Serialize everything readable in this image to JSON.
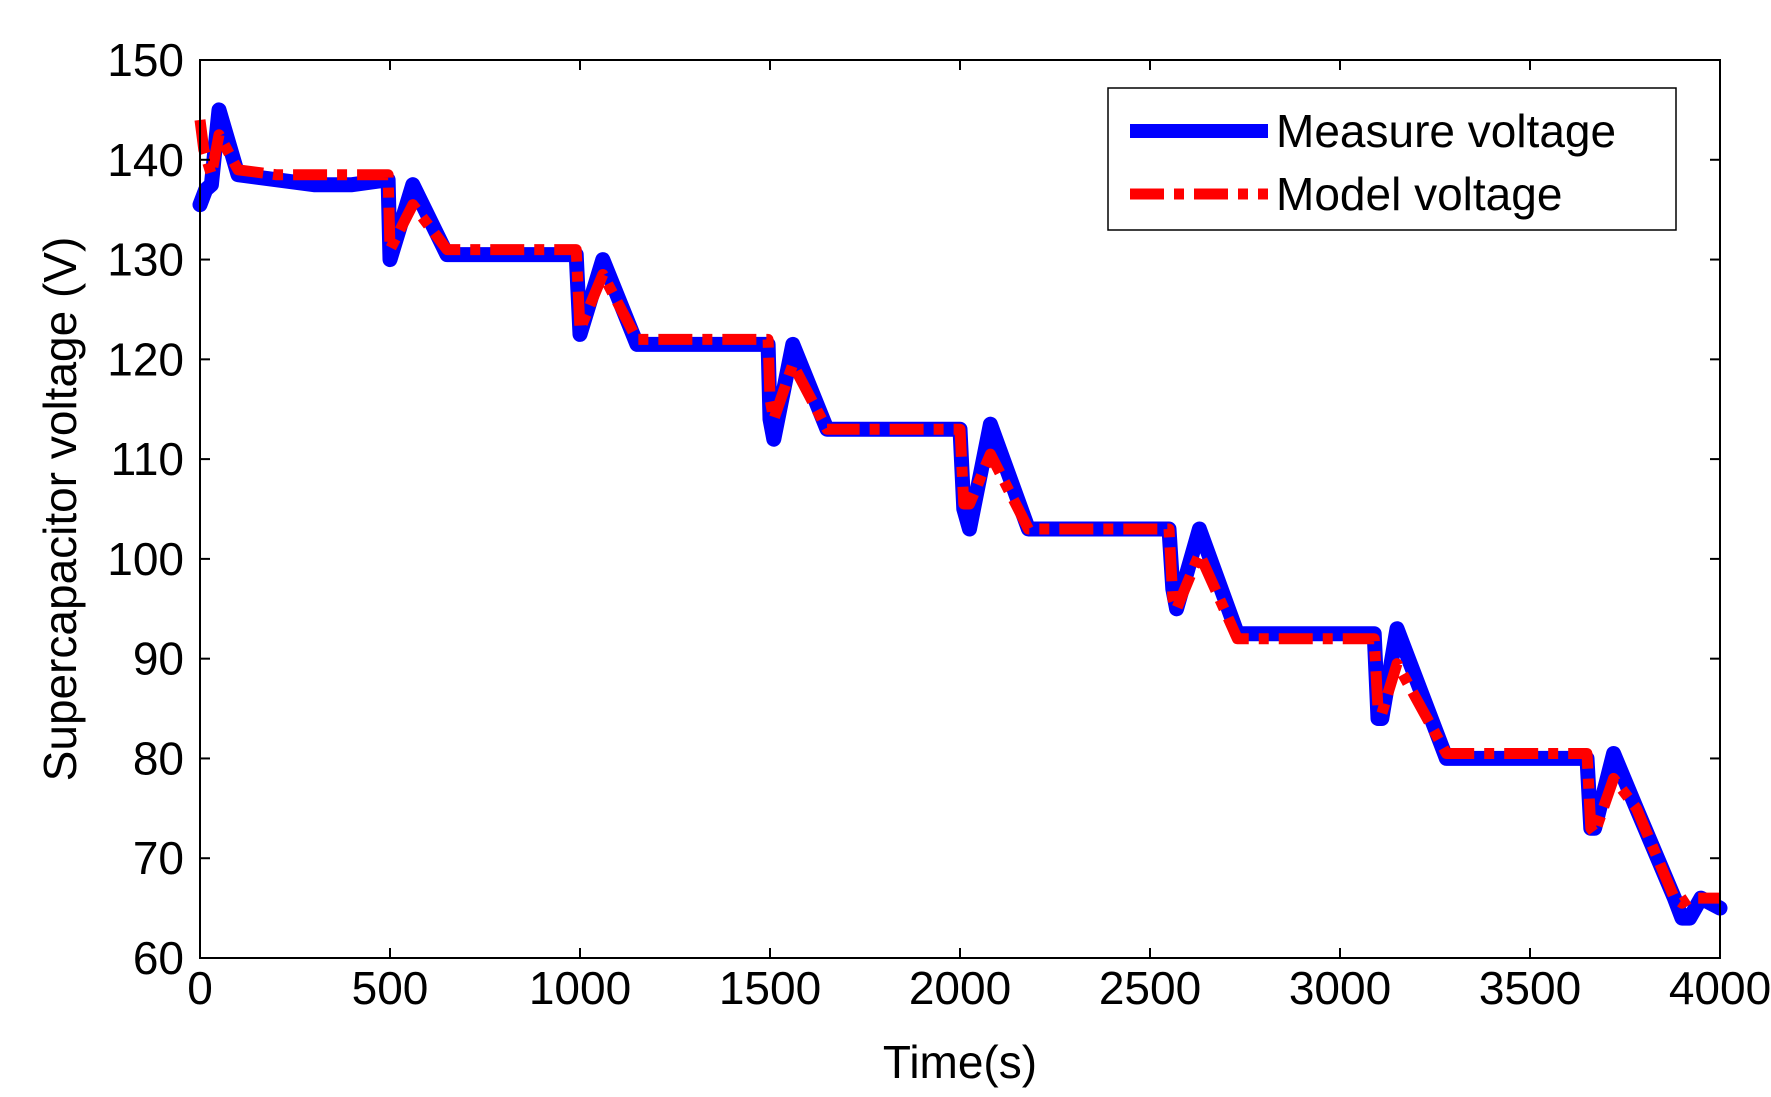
{
  "chart_data": {
    "type": "line",
    "title": "",
    "xlabel": "Time(s)",
    "ylabel": "Supercapacitor voltage (V)",
    "xlim": [
      0,
      4000
    ],
    "ylim": [
      60,
      150
    ],
    "xticks": [
      0,
      500,
      1000,
      1500,
      2000,
      2500,
      3000,
      3500,
      4000
    ],
    "yticks": [
      60,
      70,
      80,
      90,
      100,
      110,
      120,
      130,
      140,
      150
    ],
    "grid": false,
    "legend_position": "top-right",
    "series": [
      {
        "name": "Measure voltage",
        "color": "#0000ff",
        "style": "solid",
        "x": [
          0,
          15,
          30,
          50,
          100,
          200,
          300,
          400,
          495,
          500,
          560,
          650,
          800,
          900,
          990,
          1000,
          1060,
          1150,
          1300,
          1400,
          1495,
          1500,
          1510,
          1560,
          1650,
          1800,
          1900,
          2000,
          2010,
          2025,
          2080,
          2180,
          2300,
          2400,
          2500,
          2550,
          2560,
          2570,
          2630,
          2730,
          2800,
          2900,
          3000,
          3090,
          3100,
          3110,
          3150,
          3280,
          3400,
          3500,
          3650,
          3660,
          3670,
          3720,
          3780,
          3880,
          3900,
          3920,
          3950,
          4000
        ],
        "y": [
          135.5,
          137,
          137.5,
          145,
          138.5,
          138,
          137.5,
          137.5,
          138,
          130,
          137.5,
          130.5,
          130.5,
          130.5,
          130.5,
          122.5,
          130,
          121.5,
          121.5,
          121.5,
          121.5,
          114,
          112,
          121.5,
          113,
          113,
          113,
          113,
          105,
          103,
          113.5,
          103,
          103,
          103,
          103,
          103,
          97,
          95,
          103,
          92.5,
          92.5,
          92.5,
          92.5,
          92.5,
          84,
          84,
          93,
          80,
          80,
          80,
          80,
          73,
          73,
          80.5,
          75,
          66,
          64,
          64,
          66,
          65
        ]
      },
      {
        "name": "Model voltage",
        "color": "#ff0000",
        "style": "dashdot",
        "x": [
          0,
          10,
          30,
          50,
          100,
          200,
          300,
          400,
          495,
          500,
          560,
          650,
          800,
          900,
          990,
          1000,
          1060,
          1150,
          1300,
          1400,
          1495,
          1500,
          1510,
          1560,
          1650,
          1800,
          1900,
          2000,
          2010,
          2025,
          2080,
          2180,
          2300,
          2400,
          2500,
          2550,
          2560,
          2570,
          2630,
          2730,
          2800,
          2900,
          3000,
          3090,
          3100,
          3110,
          3150,
          3280,
          3400,
          3500,
          3650,
          3660,
          3670,
          3720,
          3780,
          3880,
          3900,
          3920,
          3950,
          4000
        ],
        "y": [
          144,
          141,
          138.5,
          142.5,
          139,
          138.5,
          138.5,
          138.5,
          138.5,
          131,
          135.5,
          131,
          131,
          131,
          131,
          123,
          128.5,
          122,
          122,
          122,
          122,
          116,
          114,
          119.5,
          113,
          113,
          113,
          113,
          105.5,
          105.5,
          110.5,
          103,
          103,
          103,
          103,
          103,
          96,
          95,
          100.5,
          92,
          92,
          92,
          92,
          92,
          85,
          84.5,
          89.5,
          80.5,
          80.5,
          80.5,
          80.5,
          73,
          72.5,
          78,
          75,
          66,
          65.5,
          66,
          66,
          66
        ]
      }
    ]
  }
}
